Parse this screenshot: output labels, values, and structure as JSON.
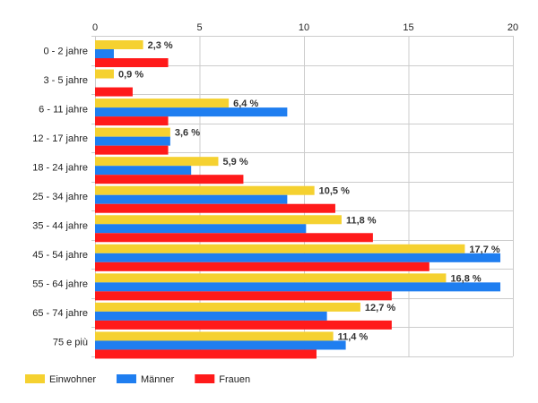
{
  "chart_data": {
    "type": "bar",
    "orientation": "horizontal",
    "categories": [
      "0 - 2 jahre",
      "3 - 5 jahre",
      "6 - 11 jahre",
      "12 - 17 jahre",
      "18 - 24 jahre",
      "25 - 34 jahre",
      "35 - 44 jahre",
      "45 - 54 jahre",
      "55 - 64 jahre",
      "65 - 74 jahre",
      "75 e più"
    ],
    "series": [
      {
        "name": "Einwohner",
        "color": "#f5d130",
        "values": [
          2.3,
          0.9,
          6.4,
          3.6,
          5.9,
          10.5,
          11.8,
          17.7,
          16.8,
          12.7,
          11.4
        ]
      },
      {
        "name": "Männer",
        "color": "#1f7ef0",
        "values": [
          0.9,
          0.0,
          9.2,
          3.6,
          4.6,
          9.2,
          10.1,
          19.4,
          19.4,
          11.1,
          12.0
        ]
      },
      {
        "name": "Frauen",
        "color": "#ff1a1a",
        "values": [
          3.5,
          1.8,
          3.5,
          3.5,
          7.1,
          11.5,
          13.3,
          16.0,
          14.2,
          14.2,
          10.6
        ]
      }
    ],
    "data_labels": [
      "2,3 %",
      "0,9 %",
      "6,4 %",
      "3,6 %",
      "5,9 %",
      "10,5 %",
      "11,8 %",
      "17,7 %",
      "16,8 %",
      "12,7 %",
      "11,4 %"
    ],
    "x_ticks": [
      0,
      5,
      10,
      15,
      20
    ],
    "xlim": [
      0,
      20
    ],
    "xaxis_position": "top",
    "grid": true,
    "legend_position": "bottom-left",
    "title": "",
    "xlabel": "",
    "ylabel": ""
  }
}
